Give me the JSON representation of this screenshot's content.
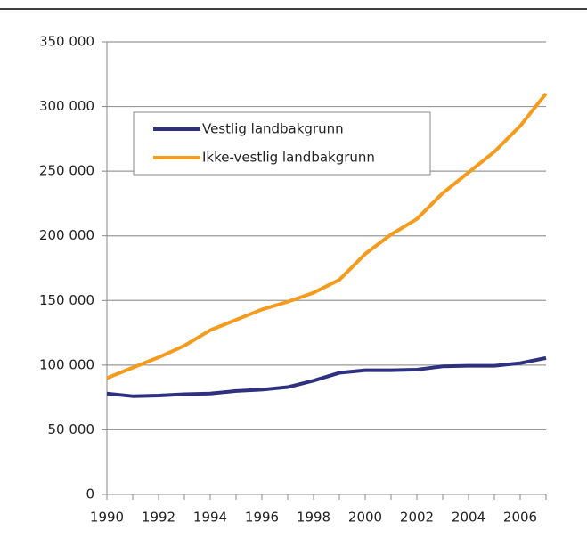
{
  "chart_data": {
    "type": "line",
    "x": [
      1990,
      1991,
      1992,
      1993,
      1994,
      1995,
      1996,
      1997,
      1998,
      1999,
      2000,
      2001,
      2002,
      2003,
      2004,
      2005,
      2006,
      2007
    ],
    "series": [
      {
        "name": "Vestlig landbakgrunn",
        "color": "#2e3080",
        "values": [
          78000,
          76000,
          76500,
          77500,
          78000,
          80000,
          81000,
          83000,
          88000,
          94000,
          96000,
          96000,
          96500,
          99000,
          99500,
          99500,
          101500,
          105500
        ]
      },
      {
        "name": "Ikke-vestlig landbakgrunn",
        "color": "#f59c1f",
        "values": [
          90000,
          98000,
          106000,
          115000,
          127000,
          135000,
          143000,
          149000,
          156000,
          166000,
          186000,
          201000,
          213000,
          233000,
          249000,
          265000,
          285000,
          310000
        ]
      }
    ],
    "xlim": [
      1990,
      2007
    ],
    "xticks": [
      1990,
      1992,
      1994,
      1996,
      1998,
      2000,
      2002,
      2004,
      2006
    ],
    "ylim": [
      0,
      350000
    ],
    "yticks": [
      0,
      {
        "value": 50000,
        "label": "50 000"
      },
      {
        "value": 100000,
        "label": "100 000"
      },
      {
        "value": 150000,
        "label": "150 000"
      },
      {
        "value": 200000,
        "label": "200 000"
      },
      {
        "value": 250000,
        "label": "250 000"
      },
      {
        "value": 300000,
        "label": "300 000"
      },
      {
        "value": 350000,
        "label": "350 000"
      }
    ],
    "grid": true
  }
}
